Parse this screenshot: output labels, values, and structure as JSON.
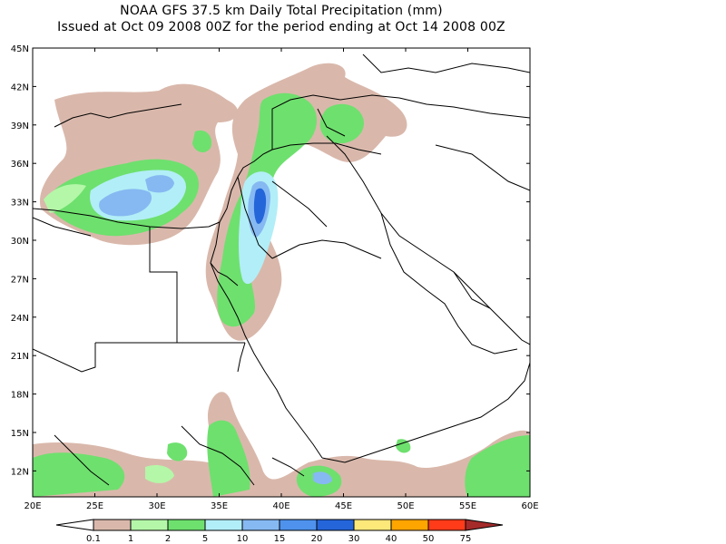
{
  "header": {
    "line1": "NOAA GFS 37.5 km Daily Total Precipitation (mm)",
    "line2": "Issued at Oct 09 2008 00Z for the period ending at Oct 14 2008 00Z"
  },
  "axes": {
    "lon_labels": [
      "20E",
      "25E",
      "30E",
      "35E",
      "40E",
      "45E",
      "50E",
      "55E",
      "60E"
    ],
    "lat_labels": [
      "45N",
      "42N",
      "39N",
      "36N",
      "33N",
      "30N",
      "27N",
      "24N",
      "21N",
      "18N",
      "15N",
      "12N"
    ]
  },
  "legend": {
    "levels": [
      "0.1",
      "1",
      "2",
      "5",
      "10",
      "15",
      "20",
      "30",
      "40",
      "50",
      "75"
    ],
    "colors": [
      "#ffffff",
      "#d9b8ab",
      "#b4f7a8",
      "#6ee06e",
      "#b2eef7",
      "#86b9f2",
      "#4e92ed",
      "#2465d9",
      "#fde87a",
      "#ffa500",
      "#ff3b1a",
      "#a52a2a"
    ]
  }
}
